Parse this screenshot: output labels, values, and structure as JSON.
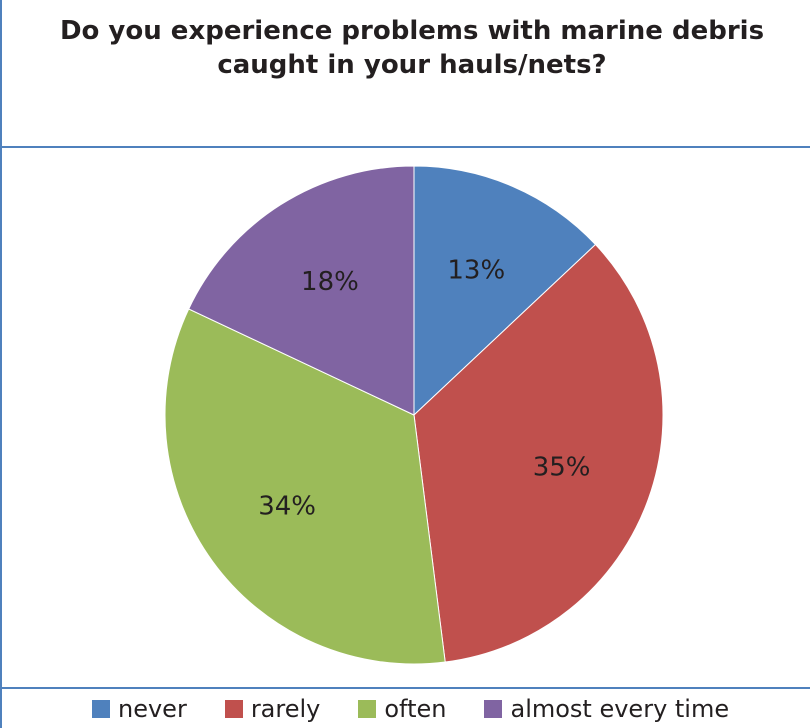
{
  "chart_data": {
    "type": "pie",
    "title": "Do you experience problems with marine debris caught in your hauls/nets?",
    "title_lines": [
      "Do you experience problems with marine debris",
      "caught in your hauls/nets?"
    ],
    "categories": [
      "never",
      "rarely",
      "often",
      "almost every time"
    ],
    "values": [
      13,
      35,
      34,
      18
    ],
    "labels": [
      "13%",
      "35%",
      "34%",
      "18%"
    ],
    "colors": [
      "#4f81bd",
      "#c0504d",
      "#9bbb59",
      "#8064a2"
    ],
    "legend_position": "bottom",
    "start_angle_deg": 0,
    "direction": "clockwise"
  }
}
